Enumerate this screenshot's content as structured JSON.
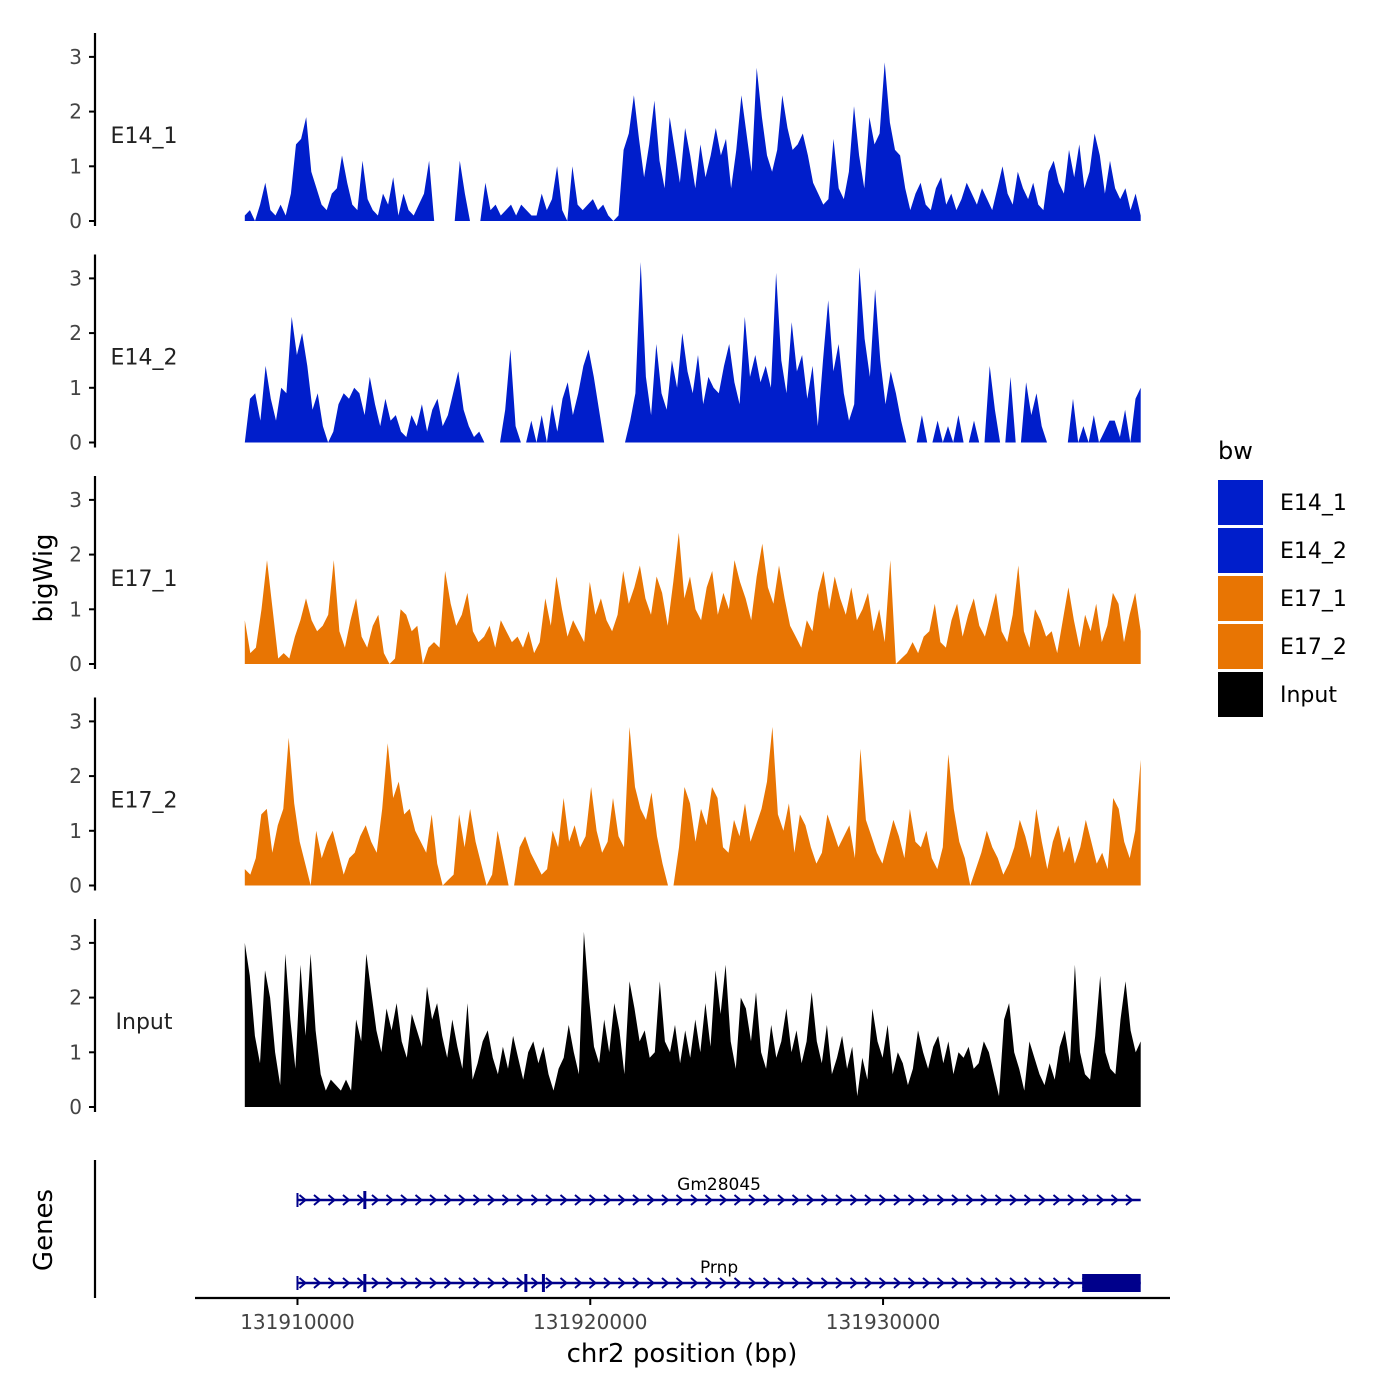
{
  "chart_data": {
    "type": "area",
    "title": "",
    "xlabel": "chr2 position (bp)",
    "ylabel": "bigWig",
    "genes_label": "Genes",
    "xlim": [
      131906500,
      131939800
    ],
    "x_ticks": [
      131910000,
      131920000,
      131930000
    ],
    "x_tick_labels": [
      "131910000",
      "131920000",
      "131930000"
    ],
    "ylim": [
      0,
      3.4
    ],
    "y_ticks": [
      0,
      1,
      2,
      3
    ],
    "y_tick_labels": [
      "0",
      "1",
      "2",
      "3"
    ],
    "x_start": 131908200,
    "x_end": 131938800,
    "legend": {
      "title": "bw",
      "position": "right",
      "entries": [
        {
          "label": "E14_1",
          "color": "#001ECB"
        },
        {
          "label": "E14_2",
          "color": "#001ECB"
        },
        {
          "label": "E17_1",
          "color": "#E87503"
        },
        {
          "label": "E17_2",
          "color": "#E87503"
        },
        {
          "label": "Input",
          "color": "#000000"
        }
      ]
    },
    "series": [
      {
        "name": "E14_1",
        "color": "#001ECB",
        "values": [
          0.1,
          0.2,
          0.0,
          0.3,
          0.7,
          0.2,
          0.1,
          0.3,
          0.1,
          0.5,
          1.4,
          1.5,
          1.9,
          0.9,
          0.6,
          0.3,
          0.2,
          0.5,
          0.6,
          1.2,
          0.7,
          0.3,
          0.2,
          1.1,
          0.4,
          0.2,
          0.1,
          0.5,
          0.3,
          0.8,
          0.1,
          0.5,
          0.2,
          0.1,
          0.3,
          0.5,
          1.1,
          0.0,
          0.0,
          0.0,
          0.0,
          0.0,
          1.1,
          0.5,
          0.0,
          0.0,
          0.0,
          0.7,
          0.2,
          0.3,
          0.1,
          0.2,
          0.3,
          0.1,
          0.3,
          0.2,
          0.1,
          0.1,
          0.5,
          0.2,
          0.4,
          1.0,
          0.2,
          0.0,
          1.0,
          0.3,
          0.2,
          0.3,
          0.4,
          0.2,
          0.3,
          0.1,
          0.0,
          0.1,
          1.3,
          1.6,
          2.3,
          1.5,
          0.8,
          1.4,
          2.2,
          1.1,
          0.6,
          1.9,
          1.3,
          0.7,
          1.7,
          1.2,
          0.6,
          1.4,
          0.8,
          1.2,
          1.7,
          1.2,
          1.5,
          0.6,
          1.3,
          2.3,
          1.6,
          0.9,
          2.8,
          1.9,
          1.2,
          0.9,
          1.3,
          2.3,
          1.7,
          1.3,
          1.4,
          1.6,
          1.2,
          0.7,
          0.5,
          0.3,
          0.4,
          1.5,
          0.6,
          0.4,
          0.9,
          2.1,
          1.2,
          0.6,
          1.9,
          1.4,
          1.6,
          2.9,
          1.8,
          1.3,
          1.2,
          0.6,
          0.2,
          0.5,
          0.7,
          0.3,
          0.2,
          0.6,
          0.8,
          0.3,
          0.5,
          0.2,
          0.4,
          0.7,
          0.5,
          0.3,
          0.6,
          0.4,
          0.2,
          0.6,
          1.0,
          0.5,
          0.3,
          0.9,
          0.6,
          0.4,
          0.7,
          0.3,
          0.2,
          0.9,
          1.1,
          0.7,
          0.5,
          1.3,
          0.8,
          1.4,
          0.6,
          0.9,
          1.6,
          1.2,
          0.5,
          1.1,
          0.6,
          0.4,
          0.6,
          0.2,
          0.5,
          0.1
        ]
      },
      {
        "name": "E14_2",
        "color": "#001ECB",
        "values": [
          0.0,
          0.8,
          0.9,
          0.4,
          1.4,
          0.8,
          0.4,
          1.0,
          0.9,
          2.3,
          1.6,
          2.0,
          1.4,
          0.6,
          0.9,
          0.3,
          0.0,
          0.2,
          0.7,
          0.9,
          0.8,
          1.0,
          0.9,
          0.5,
          1.2,
          0.7,
          0.3,
          0.8,
          0.4,
          0.5,
          0.2,
          0.1,
          0.5,
          0.3,
          0.7,
          0.2,
          0.6,
          0.8,
          0.3,
          0.5,
          0.9,
          1.3,
          0.6,
          0.3,
          0.1,
          0.2,
          0.0,
          0.0,
          0.0,
          0.0,
          0.6,
          1.7,
          0.3,
          0.0,
          0.0,
          0.4,
          0.0,
          0.5,
          0.0,
          0.7,
          0.2,
          0.8,
          1.1,
          0.5,
          0.9,
          1.4,
          1.7,
          1.2,
          0.6,
          0.0,
          0.0,
          0.0,
          0.0,
          0.0,
          0.4,
          0.9,
          3.3,
          1.2,
          0.5,
          1.8,
          0.9,
          0.6,
          1.5,
          1.0,
          2.0,
          1.3,
          0.9,
          1.6,
          0.7,
          1.2,
          1.0,
          0.9,
          1.4,
          1.8,
          1.1,
          0.7,
          2.3,
          1.2,
          1.6,
          1.1,
          1.4,
          1.0,
          3.1,
          1.5,
          0.9,
          2.2,
          1.3,
          1.6,
          0.8,
          1.4,
          0.3,
          1.5,
          2.6,
          1.3,
          1.8,
          0.9,
          0.4,
          0.7,
          3.2,
          1.9,
          1.2,
          2.8,
          1.5,
          0.7,
          1.3,
          0.9,
          0.4,
          0.0,
          0.0,
          0.0,
          0.5,
          0.0,
          0.0,
          0.4,
          0.0,
          0.3,
          0.0,
          0.5,
          0.0,
          0.0,
          0.4,
          0.0,
          0.0,
          1.4,
          0.6,
          0.0,
          0.0,
          1.2,
          0.0,
          0.0,
          1.1,
          0.5,
          0.9,
          0.3,
          0.0,
          0.0,
          0.0,
          0.0,
          0.0,
          0.8,
          0.0,
          0.3,
          0.0,
          0.5,
          0.0,
          0.2,
          0.4,
          0.4,
          0.1,
          0.6,
          0.0,
          0.8,
          1.0
        ]
      },
      {
        "name": "E17_1",
        "color": "#E87503",
        "values": [
          0.8,
          0.2,
          0.3,
          1.0,
          1.9,
          1.0,
          0.1,
          0.2,
          0.1,
          0.5,
          0.8,
          1.2,
          0.8,
          0.6,
          0.7,
          0.9,
          1.9,
          0.6,
          0.3,
          0.8,
          1.2,
          0.5,
          0.3,
          0.7,
          0.9,
          0.2,
          0.0,
          0.1,
          1.0,
          0.9,
          0.6,
          0.7,
          0.0,
          0.3,
          0.4,
          0.3,
          1.7,
          1.1,
          0.7,
          0.9,
          1.3,
          0.6,
          0.4,
          0.5,
          0.7,
          0.3,
          0.8,
          0.6,
          0.4,
          0.5,
          0.3,
          0.6,
          0.2,
          0.4,
          1.2,
          0.7,
          1.6,
          1.0,
          0.5,
          0.8,
          0.6,
          0.4,
          1.5,
          0.9,
          1.2,
          0.8,
          0.6,
          0.9,
          1.7,
          1.1,
          1.4,
          1.8,
          1.2,
          0.9,
          1.6,
          1.3,
          0.7,
          1.5,
          2.4,
          1.2,
          1.6,
          1.0,
          0.8,
          1.4,
          1.7,
          0.9,
          1.3,
          1.0,
          1.9,
          1.5,
          1.2,
          0.8,
          1.6,
          2.2,
          1.4,
          1.1,
          1.8,
          1.2,
          0.7,
          0.5,
          0.3,
          0.8,
          0.6,
          1.3,
          1.7,
          1.0,
          1.6,
          1.2,
          0.9,
          1.4,
          0.8,
          1.0,
          1.3,
          0.6,
          1.0,
          0.4,
          1.9,
          0.0,
          0.1,
          0.2,
          0.4,
          0.2,
          0.5,
          0.6,
          1.1,
          0.4,
          0.3,
          0.8,
          1.1,
          0.5,
          0.9,
          1.2,
          0.7,
          0.5,
          0.9,
          1.3,
          0.6,
          0.4,
          0.9,
          1.8,
          0.6,
          0.3,
          1.0,
          0.8,
          0.5,
          0.6,
          0.2,
          0.8,
          1.4,
          0.8,
          0.3,
          0.9,
          0.6,
          1.1,
          0.4,
          0.7,
          1.3,
          1.1,
          0.4,
          0.9,
          1.3,
          0.6
        ]
      },
      {
        "name": "E17_2",
        "color": "#E87503",
        "values": [
          0.3,
          0.2,
          0.5,
          1.3,
          1.4,
          0.6,
          1.1,
          1.4,
          2.7,
          1.5,
          0.8,
          0.4,
          0.0,
          1.0,
          0.5,
          0.8,
          1.0,
          0.6,
          0.2,
          0.5,
          0.6,
          0.9,
          1.1,
          0.8,
          0.6,
          1.4,
          2.6,
          1.6,
          1.9,
          1.3,
          1.4,
          1.0,
          0.8,
          0.6,
          1.3,
          0.4,
          0.0,
          0.1,
          0.2,
          1.3,
          0.7,
          1.4,
          0.8,
          0.4,
          0.0,
          0.2,
          1.0,
          0.5,
          0.0,
          0.0,
          0.7,
          0.9,
          0.6,
          0.4,
          0.2,
          0.3,
          1.0,
          0.7,
          1.6,
          0.8,
          1.1,
          0.7,
          0.9,
          1.8,
          1.0,
          0.6,
          0.8,
          1.6,
          0.9,
          0.7,
          2.9,
          1.8,
          1.4,
          1.2,
          1.7,
          0.9,
          0.4,
          0.0,
          0.0,
          0.7,
          1.8,
          1.5,
          0.8,
          1.4,
          1.1,
          1.8,
          1.6,
          0.7,
          0.6,
          1.2,
          0.9,
          1.5,
          0.8,
          1.1,
          1.4,
          1.9,
          2.9,
          1.3,
          1.0,
          1.5,
          0.6,
          1.3,
          1.1,
          0.7,
          0.4,
          0.6,
          1.3,
          1.0,
          0.7,
          0.9,
          1.1,
          0.5,
          2.5,
          1.2,
          0.9,
          0.6,
          0.4,
          0.8,
          1.2,
          0.9,
          0.5,
          1.4,
          0.8,
          0.7,
          1.0,
          0.5,
          0.3,
          0.7,
          2.4,
          1.4,
          0.8,
          0.5,
          0.0,
          0.3,
          0.6,
          1.0,
          0.7,
          0.5,
          0.2,
          0.4,
          0.7,
          1.2,
          0.9,
          0.5,
          1.4,
          0.8,
          0.3,
          0.8,
          1.1,
          0.6,
          0.9,
          0.4,
          0.7,
          1.2,
          0.8,
          0.4,
          0.6,
          0.3,
          1.6,
          1.4,
          0.8,
          0.5,
          1.0,
          2.3
        ]
      },
      {
        "name": "Input",
        "color": "#000000",
        "values": [
          3.0,
          2.4,
          1.3,
          0.8,
          2.5,
          2.0,
          1.0,
          0.4,
          2.8,
          1.6,
          0.7,
          2.6,
          1.3,
          2.8,
          1.4,
          0.6,
          0.3,
          0.5,
          0.4,
          0.3,
          0.5,
          0.3,
          1.6,
          1.2,
          2.8,
          2.1,
          1.4,
          1.0,
          1.8,
          1.4,
          1.9,
          1.2,
          0.9,
          1.7,
          1.4,
          1.1,
          2.2,
          1.6,
          1.9,
          1.3,
          0.9,
          1.6,
          1.1,
          0.7,
          1.9,
          0.5,
          0.8,
          1.2,
          1.4,
          0.9,
          0.6,
          1.1,
          0.7,
          1.3,
          0.9,
          0.5,
          1.0,
          1.2,
          0.8,
          1.1,
          0.6,
          0.3,
          0.7,
          0.9,
          1.5,
          1.0,
          0.6,
          3.2,
          2.0,
          1.1,
          0.8,
          1.6,
          1.0,
          1.9,
          1.4,
          0.6,
          2.3,
          1.8,
          1.2,
          1.4,
          0.9,
          1.0,
          2.3,
          1.2,
          1.0,
          1.5,
          0.8,
          1.4,
          0.9,
          1.6,
          1.0,
          1.9,
          1.1,
          2.5,
          1.7,
          2.6,
          1.2,
          0.7,
          2.0,
          1.8,
          1.2,
          2.1,
          1.0,
          0.7,
          1.5,
          0.9,
          1.2,
          1.8,
          1.0,
          1.4,
          0.8,
          1.2,
          2.1,
          1.2,
          0.8,
          1.5,
          0.6,
          0.9,
          1.3,
          0.7,
          1.1,
          0.2,
          0.9,
          0.5,
          1.8,
          1.2,
          0.9,
          1.5,
          0.6,
          1.0,
          0.8,
          0.4,
          0.7,
          1.4,
          1.0,
          0.7,
          1.1,
          1.3,
          0.8,
          1.2,
          0.6,
          1.0,
          0.9,
          1.1,
          0.7,
          0.8,
          1.2,
          1.0,
          0.6,
          0.2,
          1.6,
          1.9,
          1.0,
          0.7,
          0.3,
          1.2,
          0.9,
          0.6,
          0.4,
          0.8,
          0.5,
          1.1,
          1.4,
          0.8,
          2.6,
          1.0,
          0.6,
          0.5,
          1.3,
          2.4,
          1.0,
          0.7,
          0.6,
          1.6,
          2.3,
          1.4,
          1.0,
          1.2
        ]
      }
    ],
    "genes": [
      {
        "name": "Gm28045",
        "start": 131910000,
        "end": 131938800,
        "strand": "+",
        "exon_marks": [
          131912300
        ]
      },
      {
        "name": "Prnp",
        "start": 131910000,
        "end": 131938800,
        "strand": "+",
        "exon_marks": [
          131912300,
          131917800,
          131918400
        ],
        "block_start": 131936800,
        "block_end": 131938800
      }
    ]
  }
}
